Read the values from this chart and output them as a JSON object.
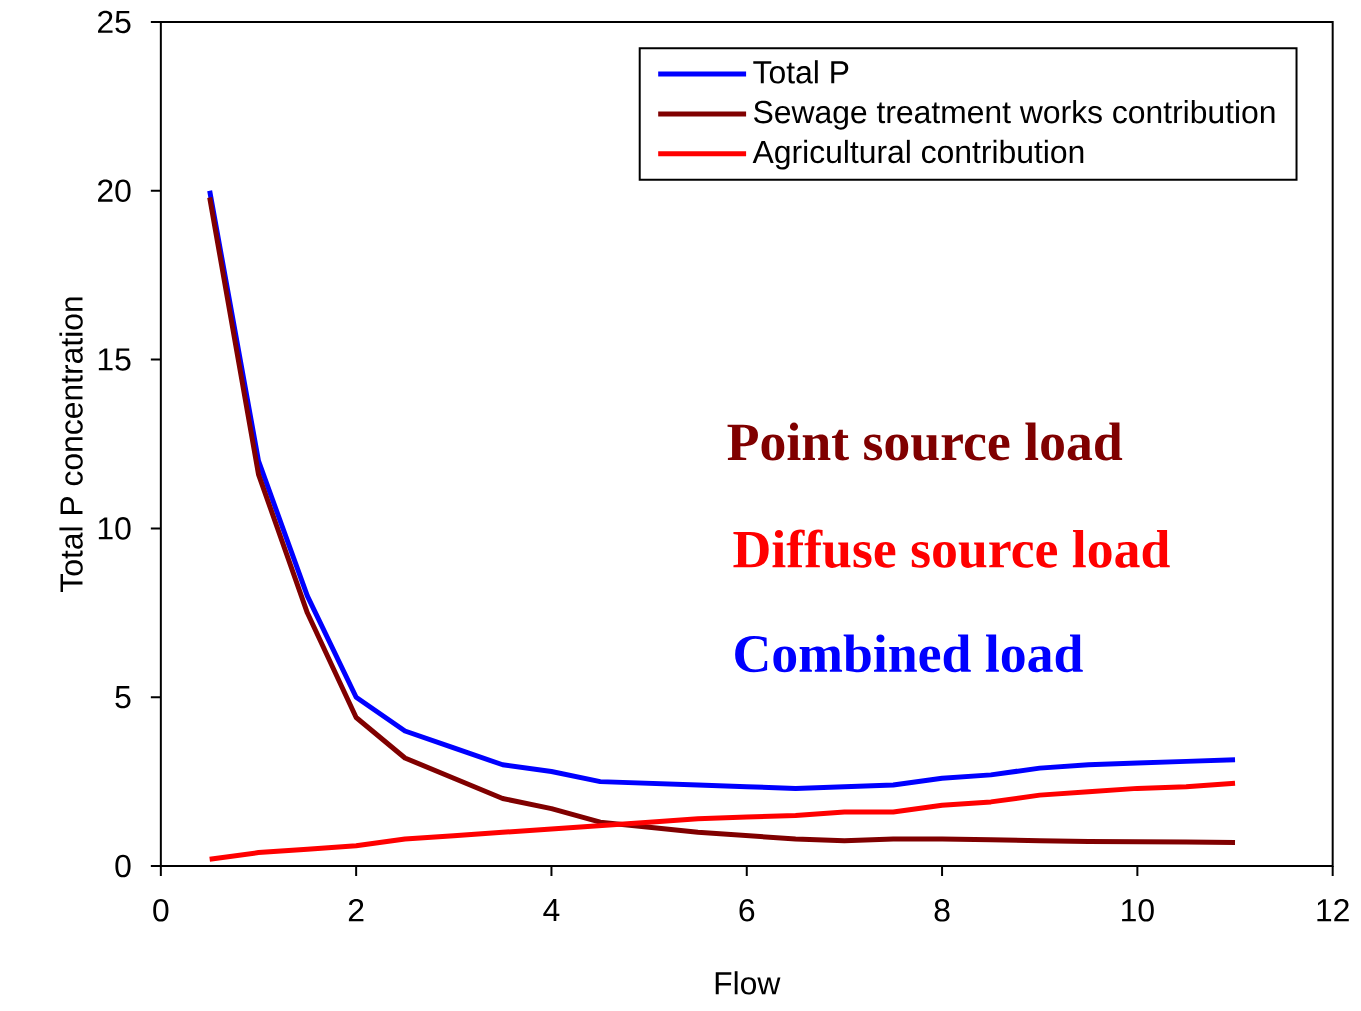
{
  "chart_data": {
    "type": "line",
    "xlabel": "Flow",
    "ylabel": "Total P concentration",
    "x": [
      0.5,
      1,
      1.5,
      2,
      2.5,
      3,
      3.5,
      4,
      4.5,
      5,
      5.5,
      6,
      6.5,
      7,
      7.5,
      8,
      8.5,
      9,
      9.5,
      10,
      10.5,
      11
    ],
    "series": [
      {
        "name": "Total P",
        "color": "#0000ff",
        "values": [
          20,
          12,
          8,
          5,
          4,
          3.5,
          3,
          2.8,
          2.5,
          2.45,
          2.4,
          2.35,
          2.3,
          2.35,
          2.4,
          2.6,
          2.7,
          2.9,
          3,
          3.05,
          3.1,
          3.15
        ]
      },
      {
        "name": "Sewage treatment works contribution",
        "color": "#800000",
        "values": [
          19.8,
          11.6,
          7.5,
          4.4,
          3.2,
          2.6,
          2,
          1.7,
          1.3,
          1.15,
          1,
          0.9,
          0.8,
          0.75,
          0.8,
          0.8,
          0.78,
          0.75,
          0.73,
          0.72,
          0.71,
          0.7
        ]
      },
      {
        "name": "Agricultural contribution",
        "color": "#ff0000",
        "values": [
          0.2,
          0.4,
          0.5,
          0.6,
          0.8,
          0.9,
          1,
          1.1,
          1.2,
          1.3,
          1.4,
          1.45,
          1.5,
          1.6,
          1.6,
          1.8,
          1.9,
          2.1,
          2.2,
          2.3,
          2.35,
          2.45
        ]
      }
    ],
    "xlim": [
      0,
      12
    ],
    "ylim": [
      0,
      25
    ],
    "xticks": [
      0,
      2,
      4,
      6,
      8,
      10,
      12
    ],
    "yticks": [
      0,
      5,
      10,
      15,
      20,
      25
    ],
    "grid": false,
    "legend": "top right",
    "marker": "none",
    "line_style": "solid",
    "annotations": [
      "Point source load",
      "Diffuse source load",
      "Combined load"
    ]
  }
}
